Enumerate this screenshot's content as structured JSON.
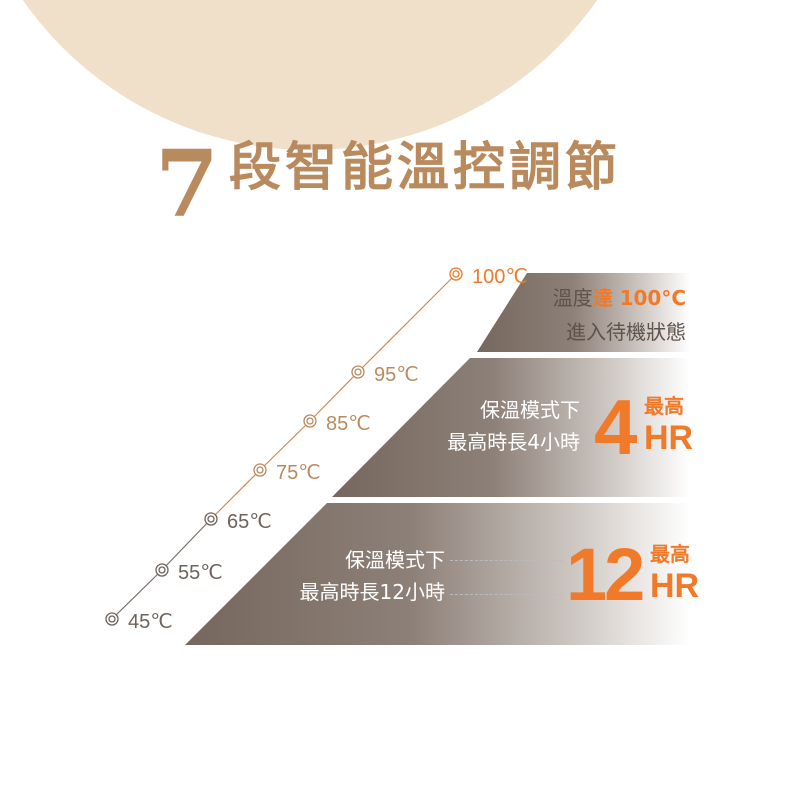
{
  "title": {
    "number": "7",
    "text": "段智能溫控調節"
  },
  "temperatures": [
    {
      "label": "45℃",
      "value": 45,
      "color": "#6e625b"
    },
    {
      "label": "55℃",
      "value": 55,
      "color": "#6e625b"
    },
    {
      "label": "65℃",
      "value": 65,
      "color": "#6e625b"
    },
    {
      "label": "75℃",
      "value": 75,
      "color": "#b98a5e"
    },
    {
      "label": "85℃",
      "value": 85,
      "color": "#b98a5e"
    },
    {
      "label": "95℃",
      "value": 95,
      "color": "#b98a5e"
    },
    {
      "label": "100℃",
      "value": 100,
      "color": "#f07a2a"
    }
  ],
  "bands": [
    {
      "line1_a": "溫度",
      "line1_b": "達 100°C",
      "line2": "進入待機狀態"
    },
    {
      "line1": "保溫模式下",
      "line2": "最高時長4小時",
      "big": "4",
      "top": "最高",
      "unit": "HR"
    },
    {
      "line1": "保溫模式下",
      "line2": "最高時長12小時",
      "big": "12",
      "top": "最高",
      "unit": "HR"
    }
  ],
  "colors": {
    "title": "#b98a5e",
    "accent": "#f07a2a",
    "band": "#75675d",
    "circle": "#f0dfc9"
  }
}
